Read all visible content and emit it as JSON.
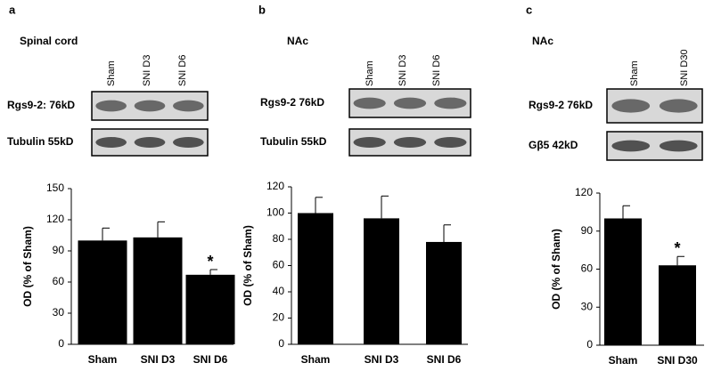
{
  "chart_data": [
    {
      "type": "bar",
      "panel": "a",
      "region": "Spinal cord",
      "lanes": [
        "Sham",
        "SNI D3",
        "SNI D6"
      ],
      "blots": [
        "Rgs9-2: 76kD",
        "Tubulin  55kD"
      ],
      "y_label": "OD (% of Sham)",
      "categories": [
        "Sham",
        "SNI D3",
        "SNI D6"
      ],
      "values": [
        100,
        103,
        67
      ],
      "errors": [
        12,
        15,
        5
      ],
      "value_marks": [
        null,
        null,
        "*"
      ],
      "color": "#000000",
      "ylim": [
        0,
        150
      ],
      "yticks": [
        0,
        30,
        60,
        90,
        120,
        150
      ]
    },
    {
      "type": "bar",
      "panel": "b",
      "region": "NAc",
      "lanes": [
        "Sham",
        "SNI D3",
        "SNI D6"
      ],
      "blots": [
        "Rgs9-2  76kD",
        "Tubulin  55kD"
      ],
      "y_label": "OD (% of  Sham)",
      "categories": [
        "Sham",
        "SNI D3",
        "SNI D6"
      ],
      "values": [
        100,
        96,
        78
      ],
      "errors": [
        12,
        17,
        13
      ],
      "value_marks": [
        null,
        null,
        null
      ],
      "color": "#000000",
      "ylim": [
        0,
        120
      ],
      "yticks": [
        0,
        20,
        40,
        60,
        80,
        100,
        120
      ]
    },
    {
      "type": "bar",
      "panel": "c",
      "region": "NAc",
      "lanes": [
        "Sham",
        "SNI D30"
      ],
      "blots": [
        "Rgs9-2  76kD",
        "Gβ5    42kD"
      ],
      "y_label": "OD (% of Sham)",
      "categories": [
        "Sham",
        "SNI D30"
      ],
      "values": [
        100,
        63
      ],
      "errors": [
        10,
        7
      ],
      "value_marks": [
        null,
        "*"
      ],
      "color": "#000000",
      "ylim": [
        0,
        120
      ],
      "yticks": [
        0,
        30,
        60,
        90,
        120
      ]
    }
  ]
}
